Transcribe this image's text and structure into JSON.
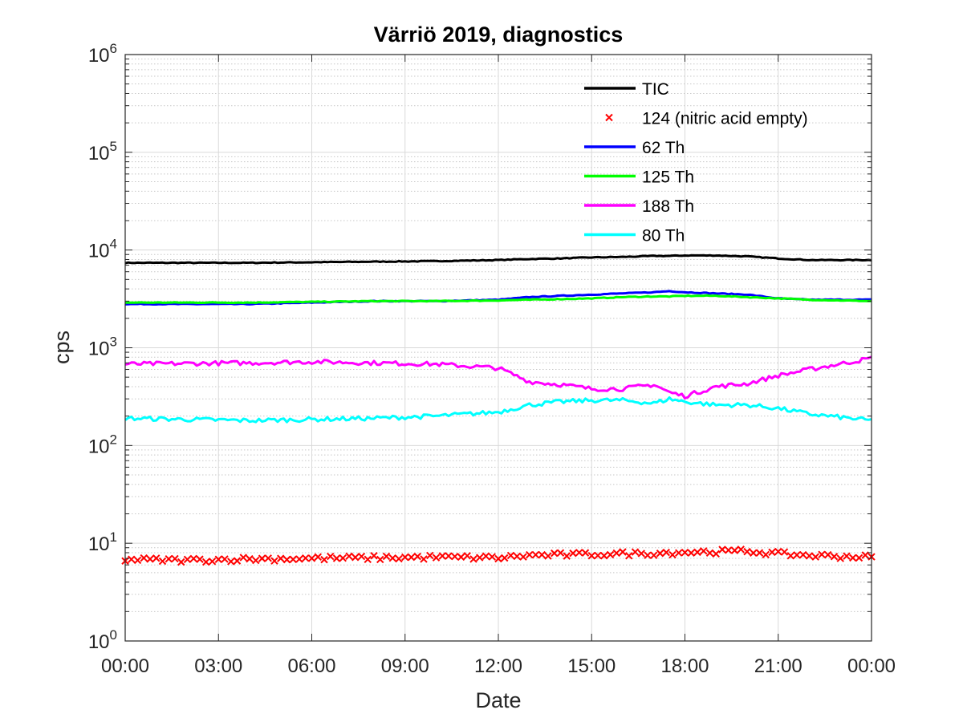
{
  "chart_data": {
    "type": "line",
    "title": "Värriö 2019, diagnostics",
    "xlabel": "Date",
    "ylabel": "cps",
    "x_ticks": [
      "00:00",
      "03:00",
      "06:00",
      "09:00",
      "12:00",
      "15:00",
      "18:00",
      "21:00",
      "00:00"
    ],
    "x_tick_hours": [
      0,
      3,
      6,
      9,
      12,
      15,
      18,
      21,
      24
    ],
    "xlim_hours": [
      0,
      24
    ],
    "yscale": "log",
    "ylim": [
      1,
      1000000
    ],
    "y_ticks": [
      {
        "base": "10",
        "exp": "0",
        "value": 1
      },
      {
        "base": "10",
        "exp": "1",
        "value": 10
      },
      {
        "base": "10",
        "exp": "2",
        "value": 100
      },
      {
        "base": "10",
        "exp": "3",
        "value": 1000
      },
      {
        "base": "10",
        "exp": "4",
        "value": 10000
      },
      {
        "base": "10",
        "exp": "5",
        "value": 100000
      },
      {
        "base": "10",
        "exp": "6",
        "value": 1000000
      }
    ],
    "grid": true,
    "minor_grid": true,
    "legend_position": "top-right",
    "x_hours": [
      0,
      2,
      4,
      6,
      8,
      10,
      12,
      13,
      14,
      15,
      16,
      17,
      17.5,
      18,
      19,
      20,
      21,
      22,
      24
    ],
    "series": [
      {
        "name": "TIC",
        "color": "#000000",
        "style": "line",
        "values": [
          7400,
          7400,
          7400,
          7500,
          7600,
          7700,
          7900,
          8100,
          8200,
          8400,
          8500,
          8700,
          8700,
          8800,
          8800,
          8600,
          8200,
          7900,
          7900
        ]
      },
      {
        "name": "124 (nitric acid empty)",
        "color": "#ff0000",
        "style": "marker-x",
        "values": [
          6.8,
          6.7,
          6.9,
          7.0,
          7.1,
          7.2,
          7.1,
          7.5,
          7.6,
          7.7,
          7.8,
          7.9,
          8.0,
          8.1,
          8.2,
          8.3,
          7.8,
          7.5,
          7.2
        ]
      },
      {
        "name": "62 Th",
        "color": "#0000ff",
        "style": "line",
        "values": [
          2800,
          2800,
          2800,
          2900,
          3000,
          3000,
          3100,
          3300,
          3400,
          3500,
          3600,
          3700,
          3800,
          3700,
          3600,
          3500,
          3200,
          3100,
          3100
        ]
      },
      {
        "name": "125 Th",
        "color": "#00ff00",
        "style": "line",
        "values": [
          2900,
          2900,
          2900,
          2950,
          3000,
          3000,
          3050,
          3100,
          3150,
          3200,
          3300,
          3350,
          3350,
          3400,
          3400,
          3300,
          3200,
          3100,
          3000
        ]
      },
      {
        "name": "188 Th",
        "color": "#ff00ff",
        "style": "line",
        "values": [
          680,
          690,
          700,
          720,
          700,
          680,
          620,
          450,
          420,
          380,
          380,
          420,
          350,
          320,
          400,
          430,
          520,
          600,
          780
        ]
      },
      {
        "name": "80 Th",
        "color": "#00ffff",
        "style": "line",
        "values": [
          190,
          185,
          180,
          185,
          190,
          200,
          220,
          260,
          280,
          290,
          290,
          270,
          300,
          280,
          260,
          260,
          240,
          210,
          180
        ]
      }
    ]
  }
}
